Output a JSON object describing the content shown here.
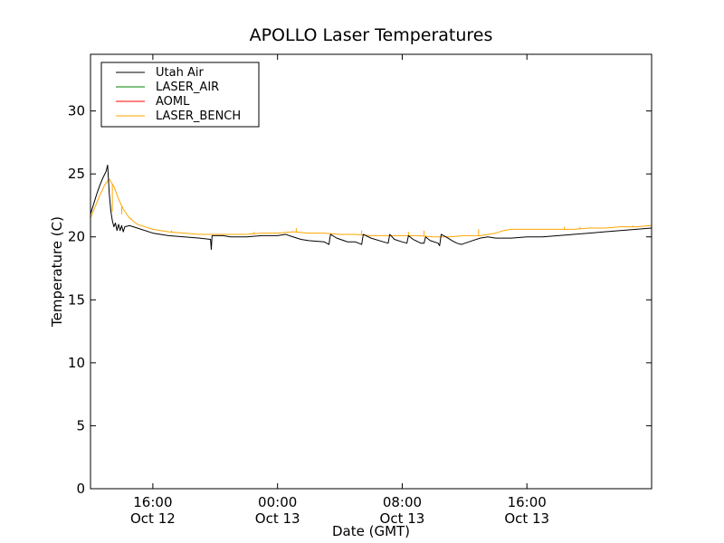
{
  "chart_data": {
    "type": "line",
    "title": "APOLLO Laser Temperatures",
    "xlabel": "Date (GMT)",
    "ylabel": "Temperature (C)",
    "x_unit": "hours since Oct 12 12:00 GMT",
    "xlim": [
      0,
      36
    ],
    "ylim": [
      0,
      34.5
    ],
    "yticks": [
      0,
      5,
      10,
      15,
      20,
      25,
      30
    ],
    "xticks": [
      {
        "value": 4,
        "line1": "16:00",
        "line2": "Oct 12"
      },
      {
        "value": 12,
        "line1": "00:00",
        "line2": "Oct 13"
      },
      {
        "value": 20,
        "line1": "08:00",
        "line2": "Oct 13"
      },
      {
        "value": 28,
        "line1": "16:00",
        "line2": "Oct 13"
      }
    ],
    "legend_position": "top-left",
    "grid": false,
    "series": [
      {
        "name": "Utah Air",
        "color": "#000000",
        "points": [
          [
            0,
            21.8
          ],
          [
            0.2,
            22.6
          ],
          [
            0.4,
            23.4
          ],
          [
            0.6,
            24.1
          ],
          [
            0.8,
            24.7
          ],
          [
            1.0,
            25.2
          ],
          [
            1.1,
            25.7
          ],
          [
            1.2,
            23.5
          ],
          [
            1.3,
            22.1
          ],
          [
            1.4,
            21.3
          ],
          [
            1.5,
            20.8
          ],
          [
            1.6,
            21.1
          ],
          [
            1.7,
            20.5
          ],
          [
            1.8,
            21.0
          ],
          [
            1.9,
            20.5
          ],
          [
            2.0,
            20.9
          ],
          [
            2.1,
            20.4
          ],
          [
            2.2,
            20.8
          ],
          [
            2.5,
            20.9
          ],
          [
            3.0,
            20.7
          ],
          [
            4.0,
            20.3
          ],
          [
            5.0,
            20.1
          ],
          [
            6.0,
            20.0
          ],
          [
            7.0,
            19.9
          ],
          [
            7.7,
            19.8
          ],
          [
            7.75,
            19.0
          ],
          [
            7.8,
            20.1
          ],
          [
            8.5,
            20.1
          ],
          [
            9.0,
            20.0
          ],
          [
            10.0,
            20.0
          ],
          [
            11.0,
            20.1
          ],
          [
            12.0,
            20.1
          ],
          [
            12.5,
            20.2
          ],
          [
            13.0,
            20.0
          ],
          [
            13.5,
            19.8
          ],
          [
            14.0,
            19.7
          ],
          [
            15.0,
            19.6
          ],
          [
            15.3,
            19.4
          ],
          [
            15.4,
            20.2
          ],
          [
            15.8,
            19.9
          ],
          [
            16.5,
            19.6
          ],
          [
            17.0,
            19.6
          ],
          [
            17.4,
            19.4
          ],
          [
            17.5,
            20.2
          ],
          [
            18.0,
            19.9
          ],
          [
            18.8,
            19.6
          ],
          [
            19.1,
            19.5
          ],
          [
            19.2,
            20.2
          ],
          [
            19.5,
            19.8
          ],
          [
            20.0,
            19.6
          ],
          [
            20.3,
            19.5
          ],
          [
            20.4,
            20.1
          ],
          [
            20.7,
            19.8
          ],
          [
            21.2,
            19.5
          ],
          [
            21.4,
            19.5
          ],
          [
            21.5,
            20.0
          ],
          [
            21.8,
            19.7
          ],
          [
            22.3,
            19.5
          ],
          [
            22.4,
            19.3
          ],
          [
            22.5,
            20.2
          ],
          [
            22.8,
            20.0
          ],
          [
            23.2,
            19.7
          ],
          [
            23.5,
            19.5
          ],
          [
            23.8,
            19.4
          ],
          [
            24.5,
            19.7
          ],
          [
            25.0,
            19.9
          ],
          [
            25.5,
            20.0
          ],
          [
            26.0,
            19.9
          ],
          [
            27.0,
            19.9
          ],
          [
            28.0,
            20.0
          ],
          [
            29.0,
            20.0
          ],
          [
            30.0,
            20.1
          ],
          [
            31.0,
            20.2
          ],
          [
            32.0,
            20.3
          ],
          [
            33.0,
            20.4
          ],
          [
            34.0,
            20.5
          ],
          [
            35.0,
            20.6
          ],
          [
            36.0,
            20.7
          ]
        ]
      },
      {
        "name": "LASER_AIR",
        "color": "#008000",
        "points": []
      },
      {
        "name": "AOML",
        "color": "#ff0000",
        "points": []
      },
      {
        "name": "LASER_BENCH",
        "color": "#ffa500",
        "points": [
          [
            0,
            21.5
          ],
          [
            0.3,
            22.4
          ],
          [
            0.6,
            23.3
          ],
          [
            0.9,
            24.1
          ],
          [
            1.2,
            24.6
          ],
          [
            1.5,
            24.0
          ],
          [
            1.8,
            23.0
          ],
          [
            2.1,
            22.2
          ],
          [
            2.5,
            21.5
          ],
          [
            3.0,
            21.0
          ],
          [
            4.0,
            20.6
          ],
          [
            5.0,
            20.4
          ],
          [
            6.0,
            20.3
          ],
          [
            7.0,
            20.2
          ],
          [
            8.0,
            20.2
          ],
          [
            9.0,
            20.2
          ],
          [
            10.0,
            20.2
          ],
          [
            11.0,
            20.3
          ],
          [
            12.0,
            20.3
          ],
          [
            13.0,
            20.4
          ],
          [
            14.0,
            20.3
          ],
          [
            15.0,
            20.3
          ],
          [
            16.0,
            20.2
          ],
          [
            17.0,
            20.2
          ],
          [
            18.0,
            20.1
          ],
          [
            19.0,
            20.1
          ],
          [
            20.0,
            20.1
          ],
          [
            21.0,
            20.1
          ],
          [
            22.0,
            20.0
          ],
          [
            23.0,
            20.0
          ],
          [
            24.0,
            20.1
          ],
          [
            25.0,
            20.1
          ],
          [
            26.0,
            20.3
          ],
          [
            26.5,
            20.5
          ],
          [
            27.0,
            20.6
          ],
          [
            28.0,
            20.6
          ],
          [
            29.0,
            20.6
          ],
          [
            30.0,
            20.6
          ],
          [
            31.0,
            20.6
          ],
          [
            32.0,
            20.7
          ],
          [
            33.0,
            20.7
          ],
          [
            34.0,
            20.8
          ],
          [
            35.0,
            20.8
          ],
          [
            36.0,
            20.9
          ]
        ],
        "spikes": [
          [
            1.4,
            22.0
          ],
          [
            2.0,
            21.8
          ],
          [
            2.6,
            21.5
          ],
          [
            5.2,
            20.5
          ],
          [
            10.5,
            20.4
          ],
          [
            13.2,
            20.7
          ],
          [
            17.4,
            20.5
          ],
          [
            20.4,
            20.4
          ],
          [
            21.4,
            20.5
          ],
          [
            24.9,
            20.6
          ],
          [
            30.4,
            20.8
          ],
          [
            31.4,
            20.8
          ],
          [
            34.8,
            20.9
          ]
        ]
      }
    ]
  }
}
